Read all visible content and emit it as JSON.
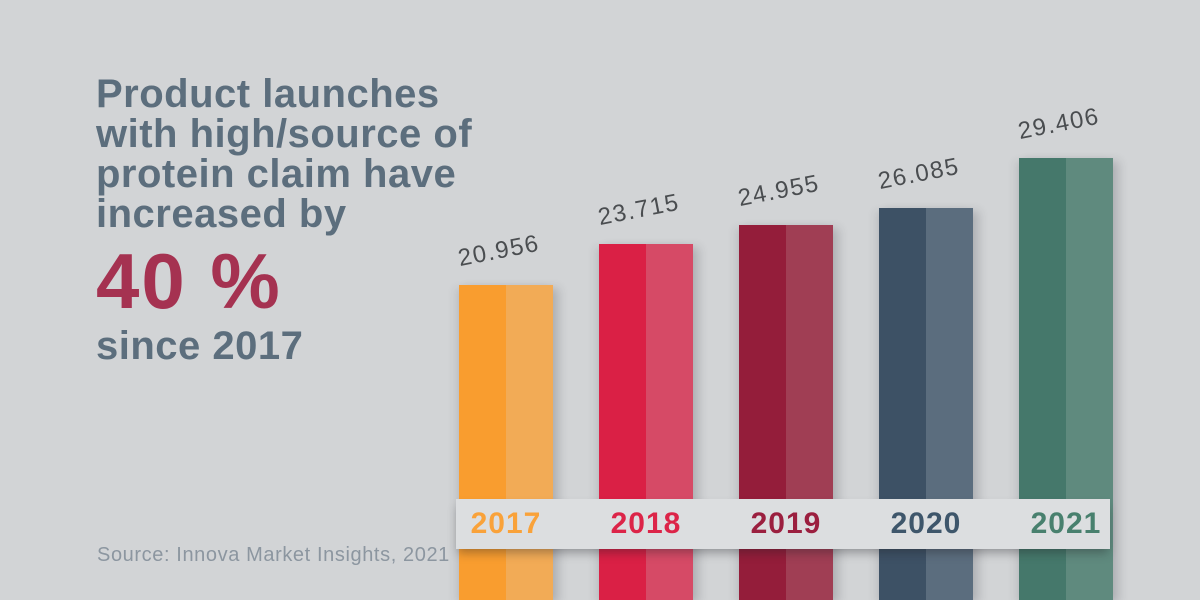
{
  "page": {
    "background": "#d2d4d6"
  },
  "headline": {
    "lines": [
      "Product launches",
      "with high/source of",
      "protein claim have",
      "increased by"
    ],
    "highlight": "40 %",
    "suffix": "since 2017",
    "text_color": "#5c6e7d",
    "highlight_color": "#a53251"
  },
  "source_note": "Source: Innova Market Insights, 2021",
  "chart_data": {
    "type": "bar",
    "title": "Product launches with high/source of protein claim have increased by 40 % since 2017",
    "categories": [
      "2017",
      "2018",
      "2019",
      "2020",
      "2021"
    ],
    "values": [
      20956,
      23715,
      24955,
      26085,
      29406
    ],
    "value_labels": [
      "20.956",
      "23.715",
      "24.955",
      "26.085",
      "29.406"
    ],
    "xlabel": "",
    "ylabel": "",
    "ylim": [
      0,
      30000
    ],
    "grid": false,
    "legend": false,
    "bar_colors": [
      {
        "left": "#f99d2f",
        "right": "#f2ab56"
      },
      {
        "left": "#da2045",
        "right": "#d64a66"
      },
      {
        "left": "#941d3a",
        "right": "#a03e54"
      },
      {
        "left": "#3d5165",
        "right": "#5b6d7e"
      },
      {
        "left": "#45786b",
        "right": "#5f8a7e"
      }
    ],
    "category_label_colors": [
      "#f9a23a",
      "#dc2448",
      "#9b1f3f",
      "#3e566b",
      "#48806e"
    ],
    "value_label_color": "#4a4d50",
    "axis_band_color": "#dcdee0"
  }
}
